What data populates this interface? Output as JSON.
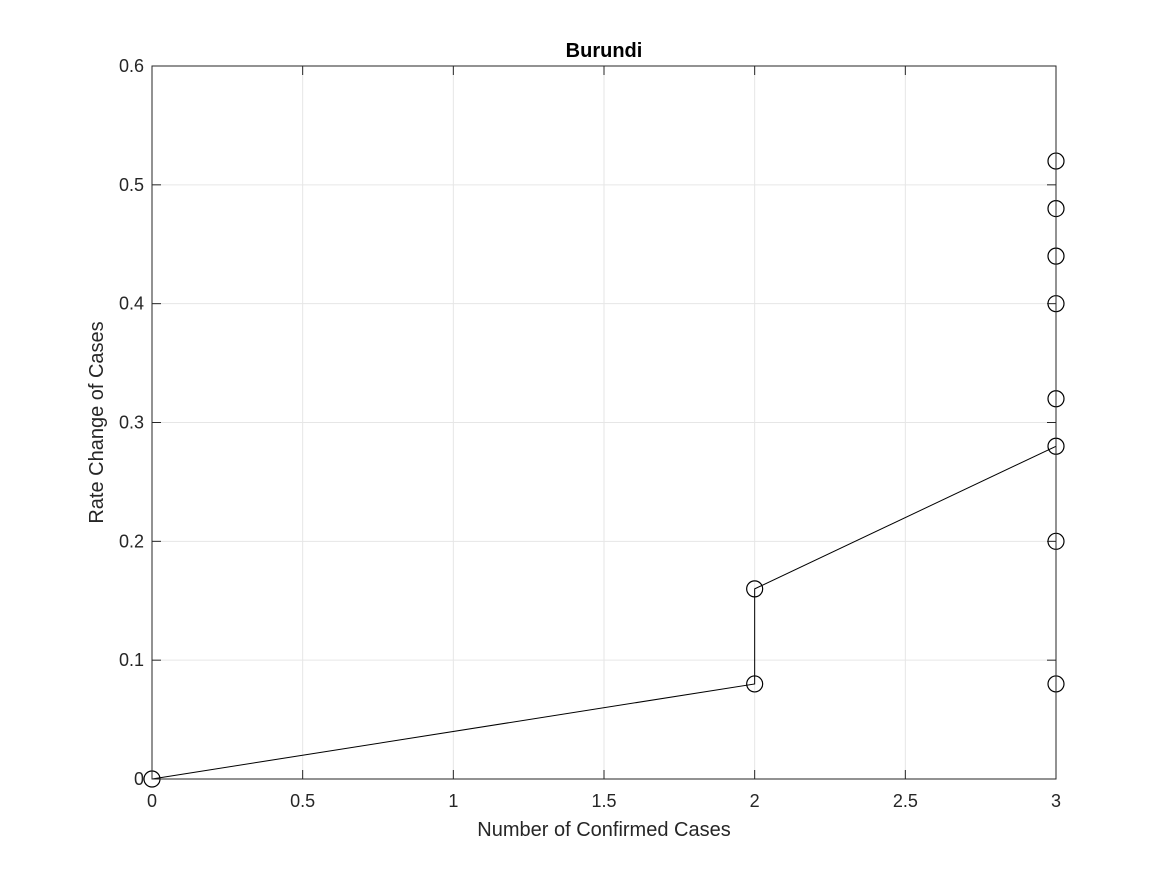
{
  "chart_data": {
    "type": "line",
    "title": "Burundi",
    "xlabel": "Number of Confirmed Cases",
    "ylabel": "Rate Change of Cases",
    "xlim": [
      0,
      3
    ],
    "ylim": [
      0,
      0.6
    ],
    "xticks": [
      0,
      0.5,
      1,
      1.5,
      2,
      2.5,
      3
    ],
    "xtick_labels": [
      "0",
      "0.5",
      "1",
      "1.5",
      "2",
      "2.5",
      "3"
    ],
    "yticks": [
      0,
      0.1,
      0.2,
      0.3,
      0.4,
      0.5,
      0.6
    ],
    "ytick_labels": [
      "0",
      "0.1",
      "0.2",
      "0.3",
      "0.4",
      "0.5",
      "0.6"
    ],
    "grid": true,
    "marker": "circle",
    "series": [
      {
        "x": [
          0,
          2,
          2,
          3,
          3,
          3,
          3,
          3,
          3,
          3,
          3
        ],
        "y": [
          0,
          0.08,
          0.16,
          0.28,
          0.08,
          0.2,
          0.32,
          0.4,
          0.44,
          0.48,
          0.52
        ]
      }
    ]
  }
}
